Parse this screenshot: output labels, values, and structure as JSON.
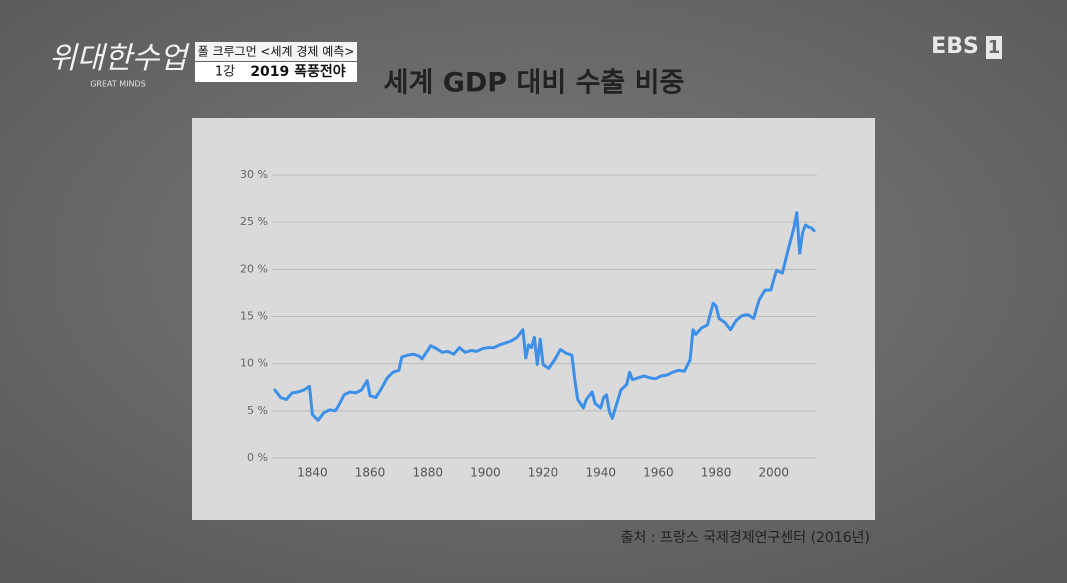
{
  "header": {
    "logo": "위대한수업",
    "logo_subtitle": "GREAT MINDS",
    "program": "폴 크루그먼 <세계 경제 예측>",
    "episode": "1강",
    "episode_title": "2019 폭풍전야",
    "channel": "EBS",
    "channel_number": "1"
  },
  "chart_data": {
    "type": "line",
    "title": "세계 GDP 대비 수출 비중",
    "source": "출처 : 프랑스 국제경제연구센터 (2016년)",
    "x": [
      1827,
      1829,
      1831,
      1833,
      1835,
      1837,
      1838,
      1839,
      1840,
      1842,
      1844,
      1846,
      1848,
      1849,
      1851,
      1853,
      1855,
      1857,
      1859,
      1860,
      1862,
      1864,
      1866,
      1868,
      1870,
      1871,
      1873,
      1875,
      1877,
      1878,
      1880,
      1881,
      1883,
      1885,
      1887,
      1889,
      1891,
      1893,
      1895,
      1897,
      1899,
      1901,
      1903,
      1905,
      1907,
      1909,
      1911,
      1913,
      1914,
      1915,
      1916,
      1917,
      1918,
      1919,
      1920,
      1922,
      1924,
      1926,
      1928,
      1930,
      1931,
      1932,
      1934,
      1935,
      1937,
      1938,
      1940,
      1941,
      1942,
      1943,
      1944,
      1946,
      1947,
      1949,
      1950,
      1951,
      1953,
      1955,
      1957,
      1959,
      1961,
      1963,
      1965,
      1967,
      1969,
      1971,
      1972,
      1973,
      1975,
      1977,
      1979,
      1980,
      1981,
      1983,
      1985,
      1987,
      1989,
      1991,
      1993,
      1995,
      1997,
      1999,
      2000,
      2001,
      2003,
      2005,
      2007,
      2008,
      2009,
      2010,
      2011,
      2012,
      2013,
      2014
    ],
    "values": [
      7.2,
      6.4,
      6.2,
      6.9,
      7.0,
      7.2,
      7.4,
      7.6,
      4.6,
      4.0,
      4.8,
      5.1,
      5.0,
      5.5,
      6.7,
      7.0,
      6.9,
      7.2,
      8.2,
      6.6,
      6.4,
      7.4,
      8.5,
      9.1,
      9.3,
      10.7,
      10.9,
      11.0,
      10.8,
      10.5,
      11.4,
      11.9,
      11.6,
      11.2,
      11.3,
      11.0,
      11.7,
      11.2,
      11.4,
      11.3,
      11.6,
      11.7,
      11.7,
      12.0,
      12.2,
      12.4,
      12.8,
      13.6,
      10.6,
      12.0,
      11.7,
      12.8,
      9.9,
      12.6,
      9.9,
      9.5,
      10.4,
      11.5,
      11.1,
      10.9,
      8.3,
      6.2,
      5.3,
      6.2,
      7.0,
      5.8,
      5.3,
      6.4,
      6.7,
      4.9,
      4.2,
      6.2,
      7.2,
      7.8,
      9.1,
      8.3,
      8.5,
      8.7,
      8.5,
      8.4,
      8.7,
      8.8,
      9.1,
      9.3,
      9.2,
      10.4,
      13.6,
      13.1,
      13.8,
      14.1,
      16.4,
      16.1,
      14.8,
      14.4,
      13.6,
      14.6,
      15.1,
      15.2,
      14.8,
      16.8,
      17.8,
      17.8,
      18.9,
      19.9,
      19.6,
      22.1,
      24.4,
      26.0,
      21.7,
      23.9,
      24.7,
      24.5,
      24.4,
      24.1
    ],
    "color": "#3d8fe8",
    "xlim": [
      1826,
      2015
    ],
    "xticks": [
      1840,
      1860,
      1880,
      1900,
      1920,
      1940,
      1960,
      1980,
      2000
    ],
    "ylim": [
      0,
      30
    ],
    "yticks": [
      {
        "value": 0,
        "label": "0 %"
      },
      {
        "value": 5,
        "label": "5 %"
      },
      {
        "value": 10,
        "label": "10 %"
      },
      {
        "value": 15,
        "label": "15 %"
      },
      {
        "value": 20,
        "label": "20 %"
      },
      {
        "value": 25,
        "label": "25 %"
      },
      {
        "value": 30,
        "label": "30 %"
      }
    ],
    "grid": true
  }
}
